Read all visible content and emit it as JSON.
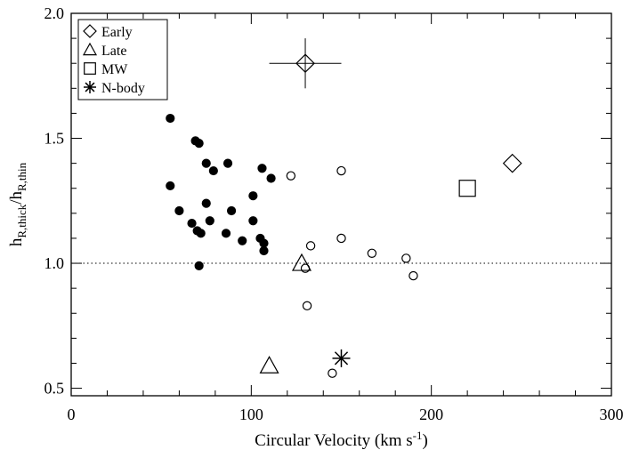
{
  "chart_data": {
    "type": "scatter",
    "xlabel": "Circular Velocity (km s",
    "xlabel_sup": "-1",
    "xlabel_close": ")",
    "ylabel_parts": [
      "h",
      "R,thick",
      "/h",
      "R,thin"
    ],
    "xlim": [
      0,
      300
    ],
    "ylim": [
      0.47,
      2.0
    ],
    "xticks": [
      {
        "value": 0,
        "label": "0"
      },
      {
        "value": 100,
        "label": "100"
      },
      {
        "value": 200,
        "label": "200"
      },
      {
        "value": 300,
        "label": "300"
      }
    ],
    "yticks": [
      {
        "value": 0.5,
        "label": "0.5"
      },
      {
        "value": 1.0,
        "label": "1.0"
      },
      {
        "value": 1.5,
        "label": "1.5"
      },
      {
        "value": 2.0,
        "label": "2.0"
      }
    ],
    "reference_line": {
      "y": 1.0,
      "style": "dotted"
    },
    "legend": {
      "placement": "top-left",
      "entries": [
        {
          "symbol": "diamond",
          "label": "Early"
        },
        {
          "symbol": "triangle",
          "label": "Late"
        },
        {
          "symbol": "square",
          "label": "MW"
        },
        {
          "symbol": "asterisk",
          "label": "N-body"
        }
      ]
    },
    "series": [
      {
        "marker": "filled-circle",
        "points": [
          [
            55,
            1.58
          ],
          [
            55,
            1.31
          ],
          [
            60,
            1.21
          ],
          [
            67,
            1.16
          ],
          [
            69,
            1.49
          ],
          [
            70,
            1.13
          ],
          [
            71,
            1.48
          ],
          [
            71,
            0.99
          ],
          [
            72,
            1.12
          ],
          [
            75,
            1.4
          ],
          [
            75,
            1.24
          ],
          [
            77,
            1.17
          ],
          [
            79,
            1.37
          ],
          [
            87,
            1.4
          ],
          [
            86,
            1.12
          ],
          [
            89,
            1.21
          ],
          [
            95,
            1.09
          ],
          [
            101,
            1.27
          ],
          [
            101,
            1.17
          ],
          [
            105,
            1.1
          ],
          [
            106,
            1.38
          ],
          [
            107,
            1.05
          ],
          [
            107,
            1.08
          ],
          [
            111,
            1.34
          ]
        ]
      },
      {
        "marker": "open-circle",
        "points": [
          [
            122,
            1.35
          ],
          [
            150,
            1.37
          ],
          [
            133,
            1.07
          ],
          [
            150,
            1.1
          ],
          [
            167,
            1.04
          ],
          [
            186,
            1.02
          ],
          [
            130,
            0.98
          ],
          [
            190,
            0.95
          ],
          [
            131,
            0.83
          ],
          [
            145,
            0.56
          ]
        ]
      },
      {
        "marker": "diamond",
        "points": [
          [
            245,
            1.4
          ],
          [
            130,
            1.8
          ]
        ],
        "error_bars": [
          {
            "x": 130,
            "y": 1.8,
            "xerr": 20,
            "yerr": 0.1
          }
        ]
      },
      {
        "marker": "triangle",
        "points": [
          [
            128,
            1.0
          ],
          [
            110,
            0.59
          ]
        ]
      },
      {
        "marker": "square",
        "points": [
          [
            220,
            1.3
          ]
        ]
      },
      {
        "marker": "asterisk",
        "points": [
          [
            150,
            0.62
          ]
        ]
      }
    ]
  }
}
